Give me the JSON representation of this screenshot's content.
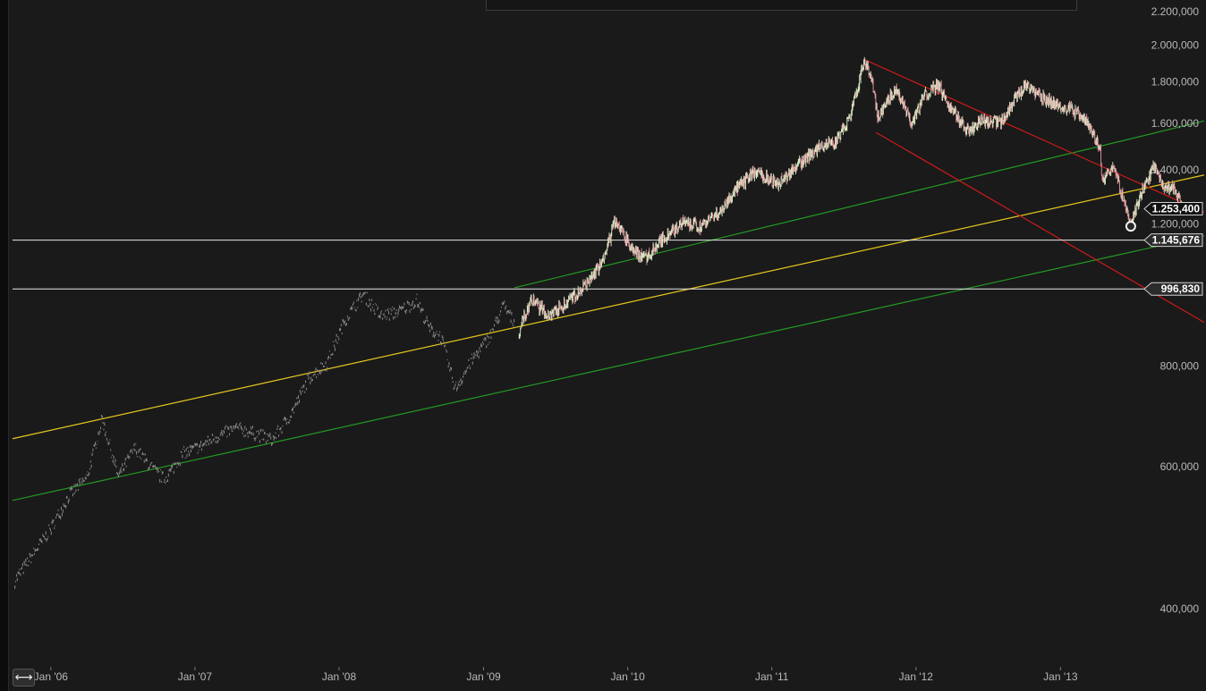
{
  "chart_data": {
    "type": "line",
    "scale": "log",
    "title": "",
    "xlabel": "",
    "ylabel": "",
    "x_ticks": [
      "Jan '06",
      "Jan '07",
      "Jan '08",
      "Jan '09",
      "Jan '10",
      "Jan '11",
      "Jan '12",
      "Jan '13"
    ],
    "y_ticks": [
      "2.200,000",
      "2.000,000",
      "1.800,000",
      "1.600,000",
      "1.400,000",
      "1.200,000",
      "800,000",
      "600,000",
      "400,000"
    ],
    "y_tick_values": [
      2200,
      2000,
      1800,
      1600,
      1400,
      1200,
      800,
      600,
      400
    ],
    "ylim": [
      360,
      2300
    ],
    "xlim": [
      "2005-09-26",
      "2013-12-31"
    ],
    "grid": false,
    "series": [
      {
        "style": "dotted-grey",
        "points": [
          [
            "2005-10-01",
            435
          ],
          [
            "2005-11-15",
            468
          ],
          [
            "2006-01-01",
            505
          ],
          [
            "2006-02-15",
            555
          ],
          [
            "2006-04-01",
            582
          ],
          [
            "2006-05-10",
            690
          ],
          [
            "2006-06-20",
            585
          ],
          [
            "2006-08-01",
            635
          ],
          [
            "2006-09-15",
            598
          ],
          [
            "2006-10-15",
            580
          ],
          [
            "2006-12-01",
            625
          ],
          [
            "2007-01-15",
            638
          ],
          [
            "2007-03-01",
            658
          ],
          [
            "2007-04-15",
            672
          ],
          [
            "2007-06-01",
            662
          ],
          [
            "2007-07-15",
            650
          ],
          [
            "2007-09-01",
            700
          ],
          [
            "2007-10-15",
            775
          ],
          [
            "2007-12-01",
            810
          ],
          [
            "2008-01-15",
            915
          ],
          [
            "2008-03-01",
            985
          ],
          [
            "2008-04-15",
            925
          ],
          [
            "2008-06-01",
            938
          ],
          [
            "2008-07-15",
            968
          ],
          [
            "2008-08-15",
            895
          ],
          [
            "2008-09-15",
            870
          ],
          [
            "2008-10-20",
            752
          ],
          [
            "2008-12-01",
            815
          ],
          [
            "2009-01-15",
            872
          ],
          [
            "2009-02-20",
            955
          ],
          [
            "2009-03-20",
            905
          ]
        ]
      },
      {
        "style": "candles",
        "points": [
          [
            "2009-04-01",
            882
          ],
          [
            "2009-05-01",
            965
          ],
          [
            "2009-06-15",
            925
          ],
          [
            "2009-08-01",
            958
          ],
          [
            "2009-09-15",
            1005
          ],
          [
            "2009-11-01",
            1080
          ],
          [
            "2009-12-01",
            1215
          ],
          [
            "2010-01-15",
            1110
          ],
          [
            "2010-02-15",
            1090
          ],
          [
            "2010-04-01",
            1150
          ],
          [
            "2010-05-20",
            1205
          ],
          [
            "2010-07-01",
            1190
          ],
          [
            "2010-08-15",
            1230
          ],
          [
            "2010-10-01",
            1320
          ],
          [
            "2010-11-15",
            1390
          ],
          [
            "2010-12-15",
            1375
          ],
          [
            "2011-01-15",
            1345
          ],
          [
            "2011-03-01",
            1410
          ],
          [
            "2011-04-15",
            1470
          ],
          [
            "2011-05-15",
            1505
          ],
          [
            "2011-06-15",
            1520
          ],
          [
            "2011-07-20",
            1640
          ],
          [
            "2011-08-22",
            1900
          ],
          [
            "2011-09-10",
            1835
          ],
          [
            "2011-09-26",
            1620
          ],
          [
            "2011-11-10",
            1770
          ],
          [
            "2011-12-20",
            1600
          ],
          [
            "2012-01-25",
            1740
          ],
          [
            "2012-02-28",
            1780
          ],
          [
            "2012-04-01",
            1660
          ],
          [
            "2012-05-15",
            1560
          ],
          [
            "2012-06-15",
            1610
          ],
          [
            "2012-08-01",
            1600
          ],
          [
            "2012-09-01",
            1690
          ],
          [
            "2012-10-05",
            1790
          ],
          [
            "2012-11-15",
            1720
          ],
          [
            "2013-01-01",
            1680
          ],
          [
            "2013-02-01",
            1660
          ],
          [
            "2013-03-15",
            1590
          ],
          [
            "2013-04-12",
            1480
          ],
          [
            "2013-04-15",
            1360
          ],
          [
            "2013-05-15",
            1420
          ],
          [
            "2013-06-28",
            1192
          ],
          [
            "2013-07-20",
            1290
          ],
          [
            "2013-08-27",
            1420
          ],
          [
            "2013-09-20",
            1330
          ],
          [
            "2013-10-15",
            1330
          ],
          [
            "2013-11-07",
            1253.4
          ]
        ]
      }
    ],
    "trendlines": [
      {
        "color": "#e5c61e",
        "from": [
          "2005-09-26",
          650
        ],
        "to": [
          "2013-12-31",
          1380
        ]
      },
      {
        "color": "#239a23",
        "from": [
          "2005-09-26",
          545
        ],
        "to": [
          "2013-12-31",
          1160
        ]
      },
      {
        "color": "#239a23",
        "from": [
          "2009-03-20",
          1000
        ],
        "to": [
          "2013-12-31",
          1610
        ]
      },
      {
        "color": "#cc1a1a",
        "from": [
          "2011-08-22",
          1920
        ],
        "to": [
          "2013-12-31",
          1240
        ]
      },
      {
        "color": "#cc1a1a",
        "from": [
          "2011-09-22",
          1558
        ],
        "to": [
          "2013-12-31",
          906
        ]
      }
    ],
    "horizontal_lines": [
      1145.676,
      996.83
    ],
    "price_tags": [
      {
        "value": 1253.4,
        "label": "1.253,400",
        "fill": "#111111",
        "border": "#cfcfcf"
      },
      {
        "value": 1145.676,
        "label": "1.145,676",
        "fill": "#2b2b2b",
        "border": "#cfcfcf"
      },
      {
        "value": 996.83,
        "label": "996,830",
        "fill": "#2b2b2b",
        "border": "#cfcfcf"
      }
    ],
    "markers": [
      {
        "date": "2013-06-28",
        "value": 1192
      },
      {
        "date": "2013-11-07",
        "value": 1253.4
      }
    ]
  },
  "colors": {
    "background": "#1a1a1a",
    "up_candle": "#d8f5c8",
    "down_candle": "#e79aa5",
    "history_dots": "#8a8a8a",
    "axis_text": "#b9b9b9"
  },
  "controls": {
    "scroll_icon": "double-arrow-icon",
    "scroll_glyph": "⟷"
  }
}
